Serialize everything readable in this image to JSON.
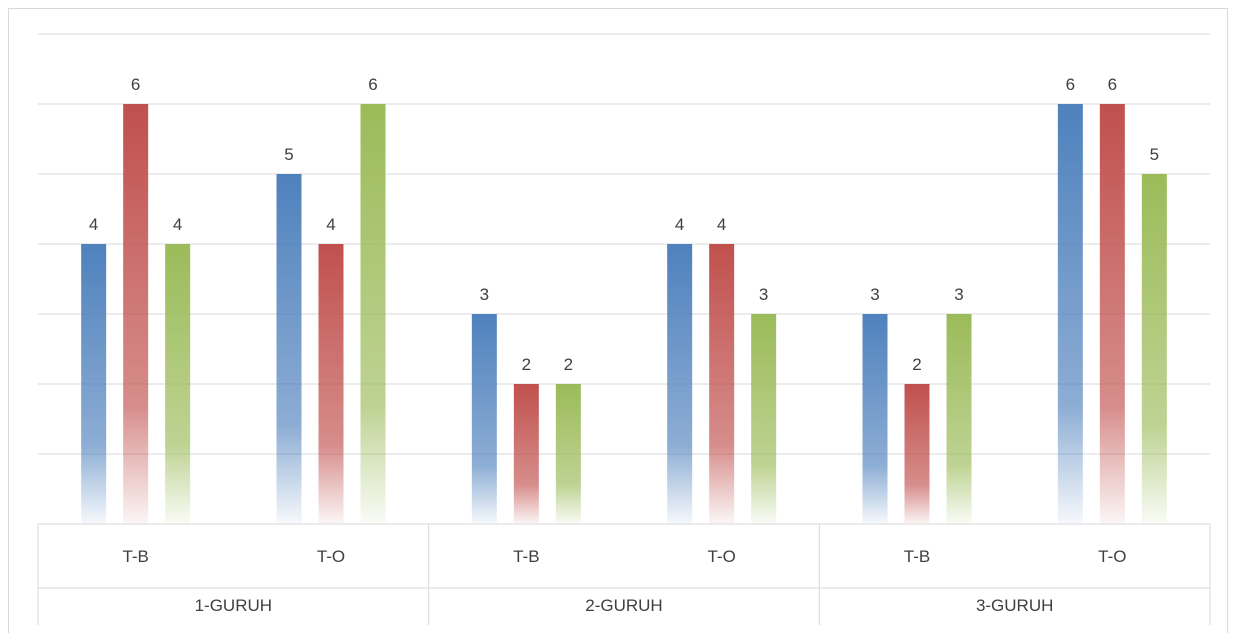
{
  "chart_data": {
    "type": "bar",
    "groups": [
      "1-GURUH",
      "2-GURUH",
      "3-GURUH"
    ],
    "categories": [
      "T-B",
      "T-O",
      "T-B",
      "T-O",
      "T-B",
      "T-O"
    ],
    "series": [
      {
        "values": [
          4,
          5,
          3,
          4,
          3,
          6
        ],
        "color": "#4f81bd"
      },
      {
        "values": [
          6,
          4,
          2,
          4,
          2,
          6
        ],
        "color": "#c0504d"
      },
      {
        "values": [
          4,
          6,
          2,
          3,
          3,
          5
        ],
        "color": "#9bbb59"
      }
    ],
    "ylim": [
      0,
      7
    ],
    "grid": true,
    "legend": "none"
  }
}
